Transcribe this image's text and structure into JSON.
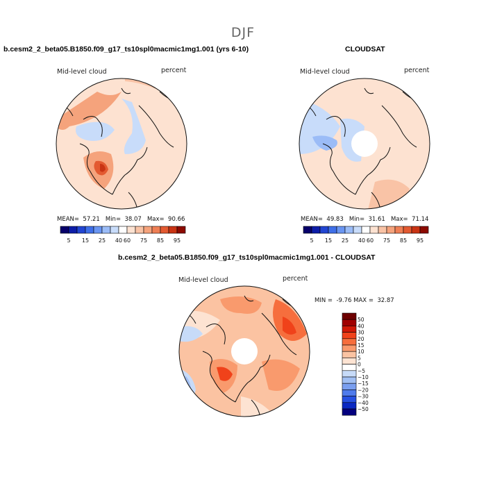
{
  "figure": {
    "season": "DJF"
  },
  "panels": [
    {
      "id": "model",
      "title": "b.cesm2_2_beta05.B1850.f09_g17_ts10spl0macmic1mg1.001 (yrs 6-10)",
      "variable": "Mid-level cloud",
      "units": "percent",
      "stats": {
        "mean_label": "MEAN=",
        "mean": "57.21",
        "min_label": "Min=",
        "min": "38.07",
        "max_label": "Max=",
        "max": "90.66"
      }
    },
    {
      "id": "obs",
      "title": "CLOUDSAT",
      "variable": "Mid-level cloud",
      "units": "percent",
      "stats": {
        "mean_label": "MEAN=",
        "mean": "49.83",
        "min_label": "Min=",
        "min": "31.61",
        "max_label": "Max=",
        "max": "71.14"
      }
    },
    {
      "id": "diff",
      "title": "b.cesm2_2_beta05.B1850.f09_g17_ts10spl0macmic1mg1.001 - CLOUDSAT",
      "variable": "Mid-level cloud",
      "units": "percent",
      "stats": {
        "min_label": "MIN =",
        "min": "-9.76",
        "max_label": "MAX =",
        "max": "32.87"
      }
    }
  ],
  "chart_data": [
    {
      "type": "heatmap",
      "projection": "polar-stereographic-north",
      "title": "b.cesm2_2_beta05.B1850.f09_g17_ts10spl0macmic1mg1.001 (yrs 6-10)",
      "variable": "Mid-level cloud",
      "units": "percent",
      "stats": {
        "mean": 57.21,
        "min": 38.07,
        "max": 90.66
      },
      "colorbar": {
        "orientation": "horizontal",
        "tick_labels": [
          "5",
          "15",
          "25",
          "40",
          "60",
          "75",
          "85",
          "95"
        ]
      },
      "field_regions": [
        {
          "value": 70,
          "where": "north-atlantic"
        },
        {
          "value": 90,
          "where": "greenland-core"
        },
        {
          "value": 50,
          "where": "central-arctic"
        }
      ]
    },
    {
      "type": "heatmap",
      "projection": "polar-stereographic-north",
      "title": "CLOUDSAT",
      "variable": "Mid-level cloud",
      "units": "percent",
      "stats": {
        "mean": 49.83,
        "min": 31.61,
        "max": 71.14
      },
      "colorbar": {
        "orientation": "horizontal",
        "tick_labels": [
          "5",
          "15",
          "25",
          "40",
          "60",
          "75",
          "85",
          "95"
        ]
      },
      "missing_region": "pole-hole"
    },
    {
      "type": "heatmap",
      "projection": "polar-stereographic-north",
      "title": "b.cesm2_2_beta05.B1850.f09_g17_ts10spl0macmic1mg1.001 - CLOUDSAT",
      "variable": "Mid-level cloud",
      "units": "percent",
      "stats": {
        "min": -9.76,
        "max": 32.87
      },
      "colorbar": {
        "orientation": "vertical",
        "tick_labels": [
          "50",
          "40",
          "30",
          "20",
          "15",
          "10",
          "5",
          "0",
          "−5",
          "−10",
          "−15",
          "−20",
          "−30",
          "−40",
          "−50"
        ]
      },
      "missing_region": "pole-hole"
    }
  ],
  "colors": {
    "abs_scale": [
      "#08006a",
      "#0d1da8",
      "#2246d2",
      "#3f6fe8",
      "#6a96f2",
      "#9bbcf7",
      "#c8dcfa",
      "#ffffff",
      "#fde2d1",
      "#f9c3a6",
      "#f5a37c",
      "#ef7f55",
      "#e35a31",
      "#c93414",
      "#8c0a00"
    ],
    "diff_scale": [
      "#6e0000",
      "#a00000",
      "#d01806",
      "#f0421a",
      "#f66e3d",
      "#f99a6d",
      "#fbc3a2",
      "#fde3d2",
      "#ffffff",
      "#c7dbf8",
      "#a1bff3",
      "#7a9ff0",
      "#4f7bec",
      "#2650e2",
      "#0a28c2",
      "#04007e"
    ]
  }
}
